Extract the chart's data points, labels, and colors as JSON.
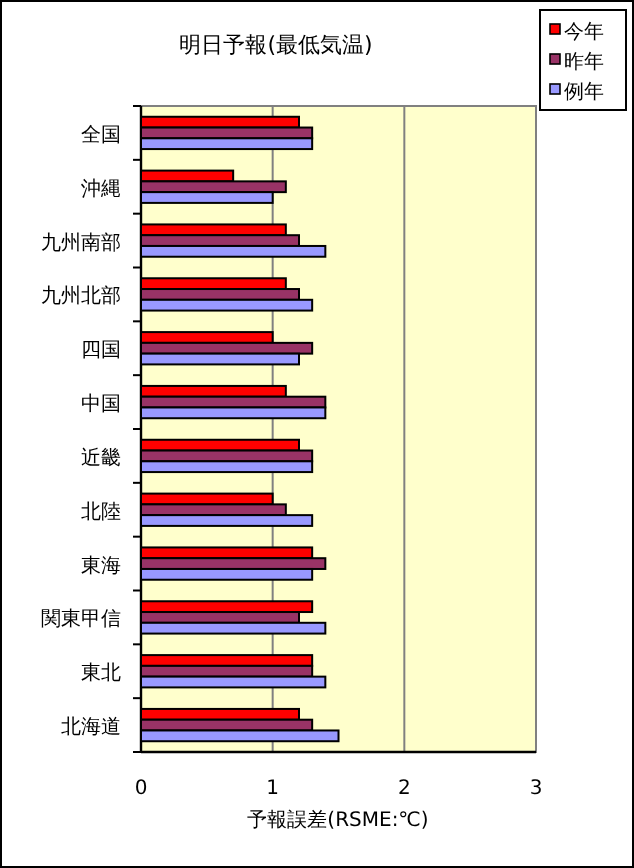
{
  "chart_data": {
    "type": "bar",
    "orientation": "horizontal",
    "title": "明日予報(最低気温)",
    "xlabel": "予報誤差(RSME:℃)",
    "categories": [
      "全国",
      "沖縄",
      "九州南部",
      "九州北部",
      "四国",
      "中国",
      "近畿",
      "北陸",
      "東海",
      "関東甲信",
      "東北",
      "北海道"
    ],
    "series": [
      {
        "name": "今年",
        "color": "#ff0000",
        "values": [
          1.2,
          0.7,
          1.1,
          1.1,
          1.0,
          1.1,
          1.2,
          1.0,
          1.3,
          1.3,
          1.3,
          1.2
        ]
      },
      {
        "name": "昨年",
        "color": "#993366",
        "values": [
          1.3,
          1.1,
          1.2,
          1.2,
          1.3,
          1.4,
          1.3,
          1.1,
          1.4,
          1.2,
          1.3,
          1.3
        ]
      },
      {
        "name": "例年",
        "color": "#9999ff",
        "values": [
          1.3,
          1.0,
          1.4,
          1.3,
          1.2,
          1.4,
          1.3,
          1.3,
          1.3,
          1.4,
          1.4,
          1.5
        ]
      }
    ],
    "xlim": [
      0,
      3
    ],
    "xticks": [
      0,
      1,
      2,
      3
    ],
    "grid": "x",
    "legend": "top right"
  }
}
